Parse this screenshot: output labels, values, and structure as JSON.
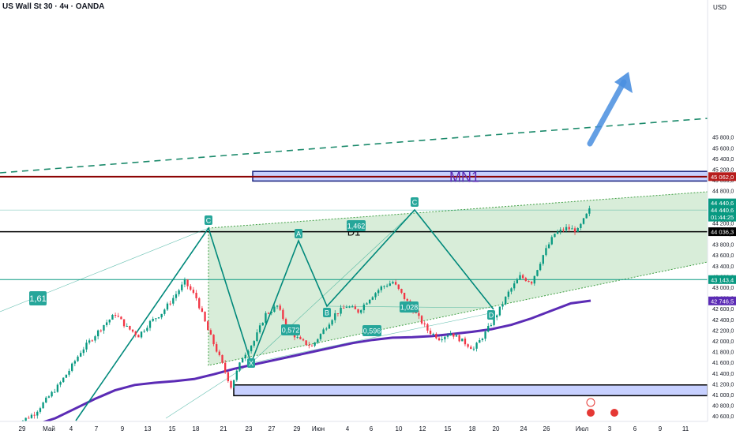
{
  "header": {
    "symbol": "US Wall St 30",
    "interval": "4ч",
    "broker": "OANDA",
    "currency": "USD"
  },
  "chart_data": {
    "type": "line",
    "title": "",
    "xlabel": "",
    "ylabel": "",
    "ylim": [
      40320,
      45800
    ],
    "y_ticks": [
      40400,
      40600,
      40800,
      41000,
      41200,
      41400,
      41600,
      41800,
      42000,
      42200,
      42400,
      42600,
      42800,
      43000,
      43200,
      43400,
      43600,
      43800,
      44000,
      44200,
      44400,
      44600,
      44800,
      45000,
      45200,
      45400,
      45600,
      45800
    ],
    "x_ticks": [
      "29",
      "Май",
      "4",
      "7",
      "9",
      "13",
      "15",
      "18",
      "21",
      "23",
      "27",
      "29",
      "Июн",
      "4",
      "6",
      "10",
      "12",
      "15",
      "18",
      "20",
      "24",
      "26",
      "Июл",
      "3",
      "6",
      "9",
      "11"
    ],
    "grid": false,
    "price_labels": [
      {
        "text": "45 062,0",
        "color": "#b71c1c"
      },
      {
        "text": "44 440,6",
        "color": "#089981"
      },
      {
        "text": "44 440,6",
        "color": "#089981"
      },
      {
        "text": "01:44:25",
        "color": "#089981"
      },
      {
        "text": "44 036,3",
        "color": "#000000"
      },
      {
        "text": "43 143,4",
        "color": "#089981"
      },
      {
        "text": "42 746,5",
        "color": "#5b2bb5"
      }
    ],
    "zones": [
      {
        "label": "MN1",
        "from": 44980,
        "to": 45160
      },
      {
        "label": "",
        "from": 40980,
        "to": 41180
      }
    ],
    "levels": [
      {
        "label": "",
        "value": 45062
      },
      {
        "label": "D1",
        "value": 44036
      },
      {
        "label": "",
        "value": 43143
      }
    ],
    "wave_points": [
      {
        "label": "C",
        "value": 43130
      },
      {
        "label": "X",
        "value": 41100
      },
      {
        "label": "A",
        "value": 42690
      },
      {
        "label": "B",
        "value": 41850
      },
      {
        "label": "C",
        "value": 43140
      },
      {
        "label": "D",
        "value": 41780
      }
    ],
    "fib_labels": [
      "1,61",
      "1,462",
      "0,572",
      "1,028",
      "0,596"
    ],
    "series": [
      {
        "values": [
          40400,
          40520,
          40650,
          40900,
          41150,
          41450,
          41800,
          42050,
          42300,
          42500,
          42250,
          42100,
          42350,
          42520,
          42800,
          43100,
          42800,
          42200,
          41700,
          41150,
          41700,
          42000,
          42500,
          42650,
          42200,
          42000,
          41900,
          42200,
          42500,
          42650,
          42550,
          42800,
          43000,
          43100,
          42800,
          42500,
          42200,
          42050,
          42150,
          42000,
          41850,
          42150,
          42500,
          42900,
          43200,
          43100,
          43600,
          44000,
          44100,
          44060,
          44440
        ]
      },
      {
        "values": [
          40350,
          40440,
          40560,
          40740,
          40920,
          41080,
          41180,
          41220,
          41250,
          41290,
          41380,
          41480,
          41560,
          41640,
          41720,
          41800,
          41880,
          41960,
          42020,
          42060,
          42070,
          42090,
          42130,
          42170,
          42220,
          42300,
          42420,
          42560,
          42700,
          42750
        ]
      }
    ]
  }
}
